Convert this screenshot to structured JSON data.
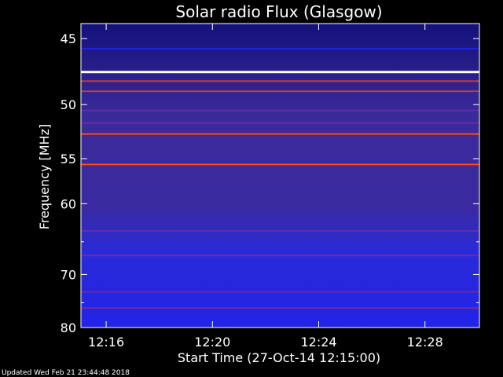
{
  "chart_data": {
    "type": "heatmap",
    "title": "Solar radio Flux (Glasgow)",
    "xlabel": "Start Time (27-Oct-14 12:15:00)",
    "ylabel": "Frequency [MHz]",
    "x_ticks": [
      "12:16",
      "12:20",
      "12:24",
      "12:28"
    ],
    "x_tick_minutes": [
      1,
      5,
      9,
      13
    ],
    "x_range_minutes": [
      0.05,
      15.05
    ],
    "y_ticks": [
      45,
      50,
      55,
      60,
      70,
      80
    ],
    "y_minor_ticks": [
      65,
      75
    ],
    "y_range": [
      44,
      80
    ],
    "y_scale": "reciprocal",
    "colormap": [
      "#0a0a8a",
      "#2020e0",
      "#6a2aa8",
      "#c83a30",
      "#ff4a10",
      "#ffffff"
    ],
    "bands": [
      {
        "freq": 45.7,
        "intensity": 0.15
      },
      {
        "freq": 47.4,
        "intensity": 1.0
      },
      {
        "freq": 48.1,
        "intensity": 0.55
      },
      {
        "freq": 48.9,
        "intensity": 0.6
      },
      {
        "freq": 50.5,
        "intensity": 0.3
      },
      {
        "freq": 51.6,
        "intensity": 0.45
      },
      {
        "freq": 52.6,
        "intensity": 0.7
      },
      {
        "freq": 55.6,
        "intensity": 0.75
      },
      {
        "freq": 63.5,
        "intensity": 0.4
      },
      {
        "freq": 67.0,
        "intensity": 0.35
      },
      {
        "freq": 73.0,
        "intensity": 0.35
      },
      {
        "freq": 76.0,
        "intensity": 0.3
      }
    ]
  },
  "footer": "Updated Wed Feb 21 23:44:48 2018"
}
